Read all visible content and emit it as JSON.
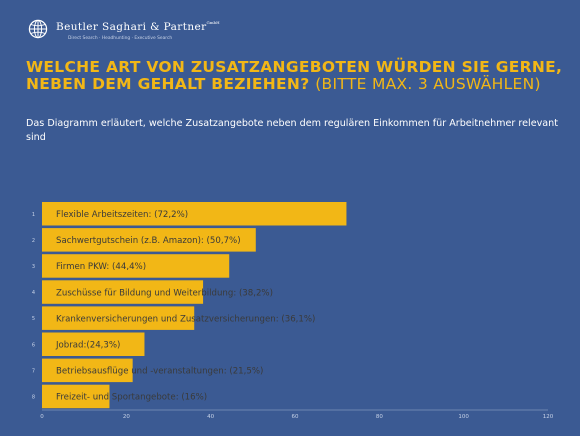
{
  "brand": {
    "name": "Beutler Saghari & Partner",
    "suffix": "GmbH",
    "tagline": "Direct Search · Headhunting · Executive Search",
    "icon": "globe-icon"
  },
  "heading": {
    "title": "WELCHE ART VON ZUSATZANGEBOTEN WÜRDEN SIE GERNE, NEBEN DEM GEHALT BEZIEHEN?",
    "subtitle": "(BITTE MAX. 3 AUSWÄHLEN)"
  },
  "description": "Das Diagramm erläutert, welche Zusatzangebote neben dem regulären Einkommen für Arbeitnehmer relevant sind",
  "colors": {
    "background": "#3b5a93",
    "bar": "#f2b716",
    "title": "#f2b716",
    "bar_label": "#3a3a3a",
    "overflow_label": "#f2b716",
    "axis": "#9fb0cf"
  },
  "chart_data": {
    "type": "bar",
    "orientation": "horizontal",
    "categories": [
      "1",
      "2",
      "3",
      "4",
      "5",
      "6",
      "7",
      "8"
    ],
    "bar_labels": [
      "Flexible Arbeitszeiten: (72,2%)",
      "Sachwertgutschein (z.B. Amazon): (50,7%)",
      "Firmen PKW: (44,4%)",
      "Zuschüsse für Bildung und Weiterbildung: (38,2%)",
      "Krankenversicherungen und Zusatzversicherungen: (36,1%)",
      "Jobrad:(24,3%)",
      "Betriebsausflüge und -veranstaltungen: (21,5%)",
      "Freizeit- und Sportangebote: (16%)"
    ],
    "values": [
      72.2,
      50.7,
      44.4,
      38.2,
      36.1,
      24.3,
      21.5,
      16
    ],
    "xlim": [
      0,
      120
    ],
    "xticks": [
      "0",
      "20",
      "40",
      "60",
      "80",
      "100",
      "120"
    ],
    "grid": false
  }
}
